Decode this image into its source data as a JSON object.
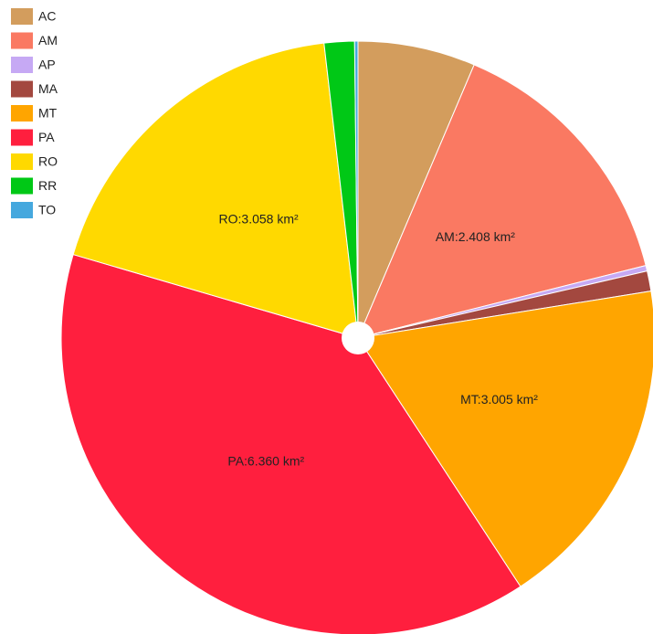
{
  "chart_data": {
    "type": "pie",
    "categories": [
      "AC",
      "AM",
      "AP",
      "MA",
      "MT",
      "PA",
      "RO",
      "RR",
      "TO"
    ],
    "values": [
      1.05,
      2.408,
      0.05,
      0.18,
      3.005,
      6.36,
      3.058,
      0.27,
      0.03
    ],
    "value_labels": [
      null,
      "AM:2.408 km²",
      null,
      null,
      "MT:3.005 km²",
      "PA:6.360 km²",
      "RO:3.058 km²",
      null,
      null
    ],
    "colors": [
      "#d39d5d",
      "#fa7962",
      "#c6a9f4",
      "#a3483f",
      "#ffa500",
      "#ff1f3e",
      "#ffd900",
      "#00c816",
      "#45a8de"
    ],
    "legend": "top-left"
  }
}
